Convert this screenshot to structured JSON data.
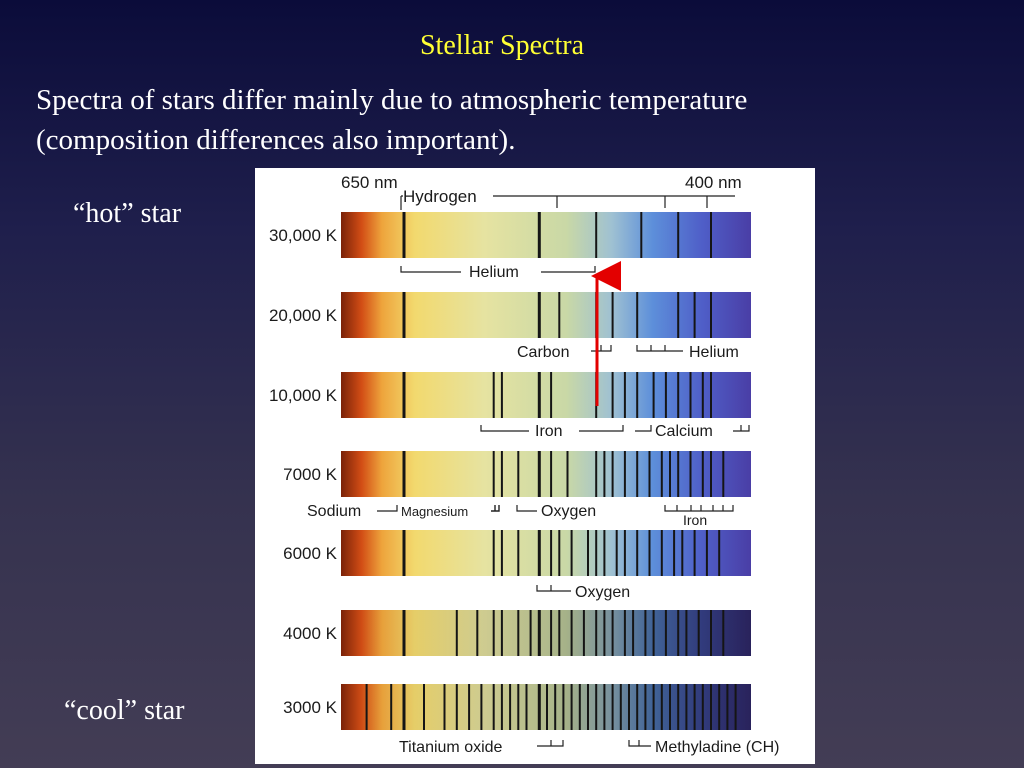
{
  "slide": {
    "title": "Stellar Spectra",
    "subtitle_line1": "Spectra of stars differ mainly due to atmospheric temperature",
    "subtitle_line2": "(composition differences also important).",
    "hot_label": "“hot” star",
    "cool_label": "“cool” star"
  },
  "figure": {
    "top_labels": {
      "left": "650 nm",
      "center": "Hydrogen",
      "right": "400 nm"
    },
    "spectra": [
      {
        "temperature": "30,000 K",
        "lines": [
          0.15,
          0.48,
          0.62,
          0.73,
          0.82,
          0.9
        ]
      },
      {
        "temperature": "20,000 K",
        "lines": [
          0.15,
          0.48,
          0.53,
          0.62,
          0.66,
          0.72,
          0.82,
          0.86,
          0.9
        ]
      },
      {
        "temperature": "10,000 K",
        "lines": [
          0.15,
          0.37,
          0.39,
          0.48,
          0.51,
          0.62,
          0.66,
          0.69,
          0.72,
          0.76,
          0.79,
          0.82,
          0.85,
          0.88,
          0.9
        ]
      },
      {
        "temperature": "7000 K",
        "lines": [
          0.15,
          0.37,
          0.39,
          0.43,
          0.48,
          0.51,
          0.55,
          0.62,
          0.64,
          0.66,
          0.69,
          0.72,
          0.75,
          0.78,
          0.8,
          0.82,
          0.85,
          0.88,
          0.9,
          0.93
        ]
      },
      {
        "temperature": "6000 K",
        "lines": [
          0.15,
          0.37,
          0.39,
          0.43,
          0.48,
          0.51,
          0.53,
          0.56,
          0.6,
          0.62,
          0.64,
          0.67,
          0.69,
          0.72,
          0.75,
          0.78,
          0.81,
          0.83,
          0.86,
          0.89,
          0.92
        ]
      },
      {
        "temperature": "4000 K",
        "lines": [
          0.15,
          0.28,
          0.33,
          0.37,
          0.39,
          0.43,
          0.46,
          0.48,
          0.51,
          0.53,
          0.56,
          0.59,
          0.62,
          0.64,
          0.66,
          0.69,
          0.71,
          0.74,
          0.76,
          0.79,
          0.82,
          0.84,
          0.87,
          0.9,
          0.93
        ]
      },
      {
        "temperature": "3000 K",
        "lines": [
          0.06,
          0.12,
          0.15,
          0.2,
          0.25,
          0.28,
          0.31,
          0.34,
          0.37,
          0.39,
          0.41,
          0.43,
          0.45,
          0.48,
          0.5,
          0.52,
          0.54,
          0.56,
          0.58,
          0.6,
          0.62,
          0.64,
          0.66,
          0.68,
          0.7,
          0.72,
          0.74,
          0.76,
          0.78,
          0.8,
          0.82,
          0.84,
          0.86,
          0.88,
          0.9,
          0.92,
          0.94,
          0.96
        ]
      }
    ],
    "element_labels": {
      "helium_top": "Helium",
      "carbon": "Carbon",
      "helium_right": "Helium",
      "iron": "Iron",
      "calcium": "Calcium",
      "sodium": "Sodium",
      "magnesium": "Magnesium",
      "oxygen_mid": "Oxygen",
      "iron_small": "Iron",
      "oxygen_low": "Oxygen",
      "titanium_oxide": "Titanium oxide",
      "methyladine": "Methyladine (CH)"
    },
    "colors": {
      "arrow": "#e30000",
      "slide_title": "#ffff33"
    }
  }
}
